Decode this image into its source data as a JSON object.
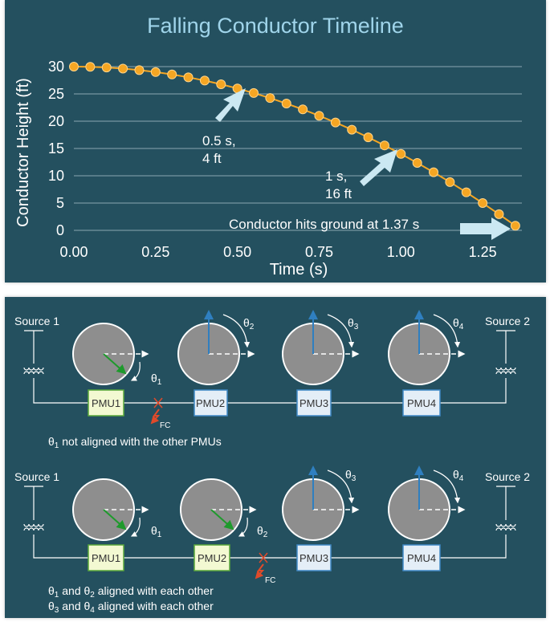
{
  "chart_data": {
    "type": "line",
    "title": "Falling Conductor Timeline",
    "xlabel": "Time (s)",
    "ylabel": "Conductor Height (ft)",
    "xlim": [
      0,
      1.37
    ],
    "ylim": [
      0,
      30
    ],
    "x_ticks": [
      "0.00",
      "0.25",
      "0.50",
      "0.75",
      "1.00",
      "1.25"
    ],
    "y_ticks": [
      "0",
      "5",
      "10",
      "15",
      "20",
      "25",
      "30"
    ],
    "grid": "horizontal",
    "series": [
      {
        "color": "#f5a623",
        "x": [
          0,
          0.05,
          0.1,
          0.15,
          0.2,
          0.25,
          0.3,
          0.35,
          0.4,
          0.45,
          0.5,
          0.55,
          0.6,
          0.65,
          0.7,
          0.75,
          0.8,
          0.85,
          0.9,
          0.95,
          1.0,
          1.05,
          1.1,
          1.15,
          1.2,
          1.25,
          1.3,
          1.35
        ],
        "y": [
          30,
          29.96,
          29.84,
          29.64,
          29.36,
          29.0,
          28.56,
          28.04,
          27.44,
          26.76,
          26.0,
          25.16,
          24.24,
          23.24,
          22.16,
          21.0,
          19.76,
          18.44,
          17.04,
          15.56,
          14.0,
          12.36,
          10.64,
          8.84,
          6.96,
          5.0,
          2.96,
          0.84
        ]
      }
    ],
    "annotations": [
      {
        "lines": [
          "0.5 s,",
          "4 ft"
        ]
      },
      {
        "lines": [
          "1 s,",
          "16 ft"
        ]
      },
      {
        "text": "Conductor hits ground at 1.37 s"
      }
    ]
  },
  "diagram": {
    "source_left": "Source 1",
    "source_right": "Source 2",
    "pmu_labels": [
      "PMU1",
      "PMU2",
      "PMU3",
      "PMU4"
    ],
    "fault_label": "FC",
    "theta_labels": [
      "θ1",
      "θ2",
      "θ3",
      "θ4"
    ],
    "scenario1_caption": "θ1 not aligned with the other PMUs",
    "scenario2_caption_1": "θ1 and θ2 aligned with each other",
    "scenario2_caption_2": "θ3 and θ4 aligned with each other",
    "colors": {
      "pmu_green": "#f3f9d2",
      "pmu_green_border": "#5aa83a",
      "pmu_blue": "#e4eef7",
      "pmu_blue_border": "#3f88c5",
      "phasor_green": "#1e9a2c",
      "phasor_blue": "#2f7fc0",
      "fault_red": "#e04a2a"
    }
  }
}
